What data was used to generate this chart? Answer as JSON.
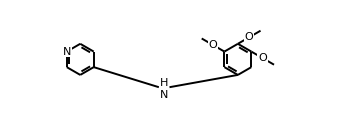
{
  "bg": "#ffffff",
  "bc": "#000000",
  "lw": 1.4,
  "dbo": 0.06,
  "fs": 7.5,
  "r": 0.38,
  "xlim": [
    -0.5,
    7.8
  ],
  "ylim": [
    -0.2,
    3.0
  ]
}
